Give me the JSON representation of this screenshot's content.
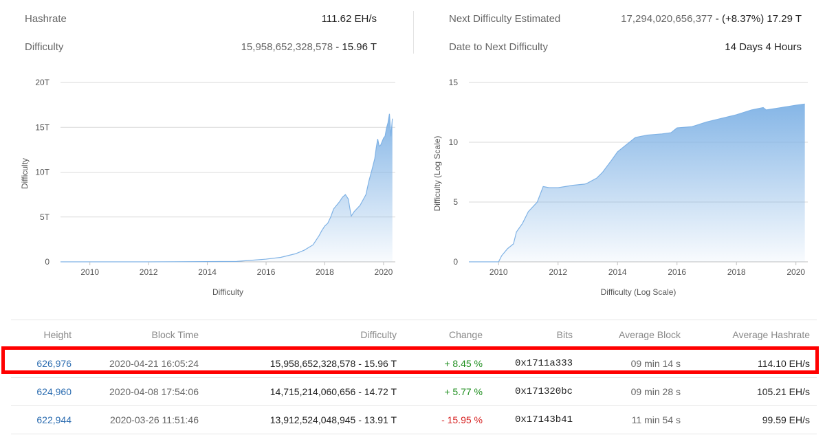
{
  "stats": {
    "hashrate_label": "Hashrate",
    "hashrate_value": "111.62 EH/s",
    "difficulty_label": "Difficulty",
    "difficulty_value": "15,958,652,328,578",
    "difficulty_short": " - 15.96 T",
    "next_label": "Next Difficulty Estimated",
    "next_value": "17,294,020,656,377",
    "next_change": " - (+8.37%) 17.29 T",
    "date_label": "Date to Next Difficulty",
    "date_value": "14 Days 4 Hours"
  },
  "chart_data": [
    {
      "type": "area",
      "title": "",
      "xlabel": "Difficulty",
      "ylabel": "Difficulty",
      "xlim": [
        2009.0,
        2020.4
      ],
      "ylim": [
        0,
        20
      ],
      "x_ticks": [
        "2010",
        "2012",
        "2014",
        "2016",
        "2018",
        "2020"
      ],
      "y_ticks": [
        "0",
        "5T",
        "10T",
        "15T",
        "20T"
      ],
      "grid": true,
      "color": "#7fb2e5",
      "x": [
        2009.0,
        2012.0,
        2015.0,
        2016.0,
        2016.5,
        2017.0,
        2017.3,
        2017.6,
        2017.8,
        2017.9,
        2018.0,
        2018.1,
        2018.2,
        2018.3,
        2018.5,
        2018.6,
        2018.7,
        2018.8,
        2018.85,
        2018.9,
        2019.0,
        2019.2,
        2019.4,
        2019.5,
        2019.6,
        2019.7,
        2019.75,
        2019.8,
        2019.85,
        2019.9,
        2020.0,
        2020.05,
        2020.1,
        2020.15,
        2020.2,
        2020.25,
        2020.3
      ],
      "values": [
        0,
        0,
        0.05,
        0.3,
        0.5,
        0.9,
        1.3,
        1.9,
        2.9,
        3.5,
        4.0,
        4.3,
        5.0,
        5.9,
        6.7,
        7.2,
        7.5,
        7.0,
        6.0,
        5.1,
        5.6,
        6.3,
        7.5,
        9.0,
        10.2,
        11.5,
        12.7,
        13.7,
        12.9,
        13.0,
        13.8,
        14.0,
        14.9,
        15.5,
        16.5,
        14.0,
        15.96
      ]
    },
    {
      "type": "area",
      "title": "",
      "xlabel": "Difficulty (Log Scale)",
      "ylabel": "Difficulty (Log Scale)",
      "xlim": [
        2009.0,
        2020.4
      ],
      "ylim": [
        0,
        15
      ],
      "x_ticks": [
        "2010",
        "2012",
        "2014",
        "2016",
        "2018",
        "2020"
      ],
      "y_ticks": [
        "0",
        "5",
        "10",
        "15"
      ],
      "grid": true,
      "color": "#7fb2e5",
      "x": [
        2009.0,
        2010.0,
        2010.1,
        2010.3,
        2010.5,
        2010.6,
        2010.8,
        2011.0,
        2011.3,
        2011.5,
        2011.7,
        2012.0,
        2012.5,
        2012.9,
        2013.0,
        2013.3,
        2013.5,
        2013.8,
        2014.0,
        2014.3,
        2014.6,
        2015.0,
        2015.5,
        2015.8,
        2016.0,
        2016.5,
        2017.0,
        2017.5,
        2018.0,
        2018.5,
        2018.9,
        2019.0,
        2019.5,
        2020.0,
        2020.3
      ],
      "values": [
        0,
        0,
        0.5,
        1.1,
        1.5,
        2.5,
        3.2,
        4.2,
        5.0,
        6.3,
        6.2,
        6.2,
        6.4,
        6.5,
        6.6,
        7.0,
        7.5,
        8.5,
        9.2,
        9.8,
        10.4,
        10.6,
        10.7,
        10.8,
        11.2,
        11.3,
        11.7,
        12.0,
        12.3,
        12.7,
        12.9,
        12.7,
        12.9,
        13.1,
        13.2
      ]
    }
  ],
  "table": {
    "headers": [
      "Height",
      "Block Time",
      "Difficulty",
      "Change",
      "Bits",
      "Average Block",
      "Average Hashrate"
    ],
    "rows": [
      {
        "height": "626,976",
        "time": "2020-04-21 16:05:24",
        "difficulty": "15,958,652,328,578 - 15.96 T",
        "change": "+ 8.45 %",
        "bits": "0x1711a333",
        "avg_block": "09 min 14 s",
        "avg_hashrate": "114.10 EH/s"
      },
      {
        "height": "624,960",
        "time": "2020-04-08 17:54:06",
        "difficulty": "14,715,214,060,656 - 14.72 T",
        "change": "+ 5.77 %",
        "bits": "0x171320bc",
        "avg_block": "09 min 28 s",
        "avg_hashrate": "105.21 EH/s"
      },
      {
        "height": "622,944",
        "time": "2020-03-26 11:51:46",
        "difficulty": "13,912,524,048,945 - 13.91 T",
        "change": "- 15.95 %",
        "bits": "0x17143b41",
        "avg_block": "11 min 54 s",
        "avg_hashrate": "99.59 EH/s"
      }
    ]
  },
  "colors": {
    "positive": "#1e8e1e",
    "negative": "#d62020",
    "link": "#2b6cb0",
    "highlight": "#ff0000"
  }
}
